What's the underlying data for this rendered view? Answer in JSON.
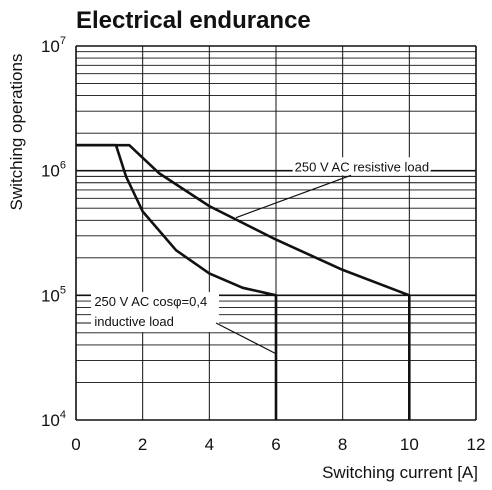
{
  "chart_data": {
    "type": "line",
    "title": "Electrical endurance",
    "xlabel": "Switching current [A]",
    "ylabel": "Switching operations",
    "x_scale": "linear",
    "y_scale": "log",
    "xlim": [
      0,
      12
    ],
    "ylim": [
      10000,
      10000000
    ],
    "x_ticks": [
      "0",
      "2",
      "4",
      "6",
      "8",
      "10",
      "12"
    ],
    "y_ticks": [
      {
        "base": "10",
        "exp": "4",
        "value": 10000
      },
      {
        "base": "10",
        "exp": "5",
        "value": 100000
      },
      {
        "base": "10",
        "exp": "6",
        "value": 1000000
      },
      {
        "base": "10",
        "exp": "7",
        "value": 10000000
      }
    ],
    "grid": true,
    "series": [
      {
        "name": "250 V AC resistive load",
        "x": [
          0,
          1.6,
          2.5,
          4,
          6,
          8,
          10,
          10
        ],
        "y": [
          1600000,
          1600000,
          950000,
          520000,
          280000,
          160000,
          100000,
          10000
        ]
      },
      {
        "name": "250 V AC cosφ=0,4 inductive load",
        "x": [
          0,
          1.2,
          1.5,
          2,
          3,
          4,
          5,
          6,
          6
        ],
        "y": [
          1600000,
          1600000,
          900000,
          470000,
          230000,
          150000,
          115000,
          100000,
          10000
        ]
      }
    ],
    "annotations": [
      {
        "id": "resistive",
        "lines": [
          "250 V AC resistive load"
        ]
      },
      {
        "id": "inductive",
        "lines": [
          "250 V AC cosφ=0,4",
          "inductive load"
        ]
      }
    ]
  }
}
